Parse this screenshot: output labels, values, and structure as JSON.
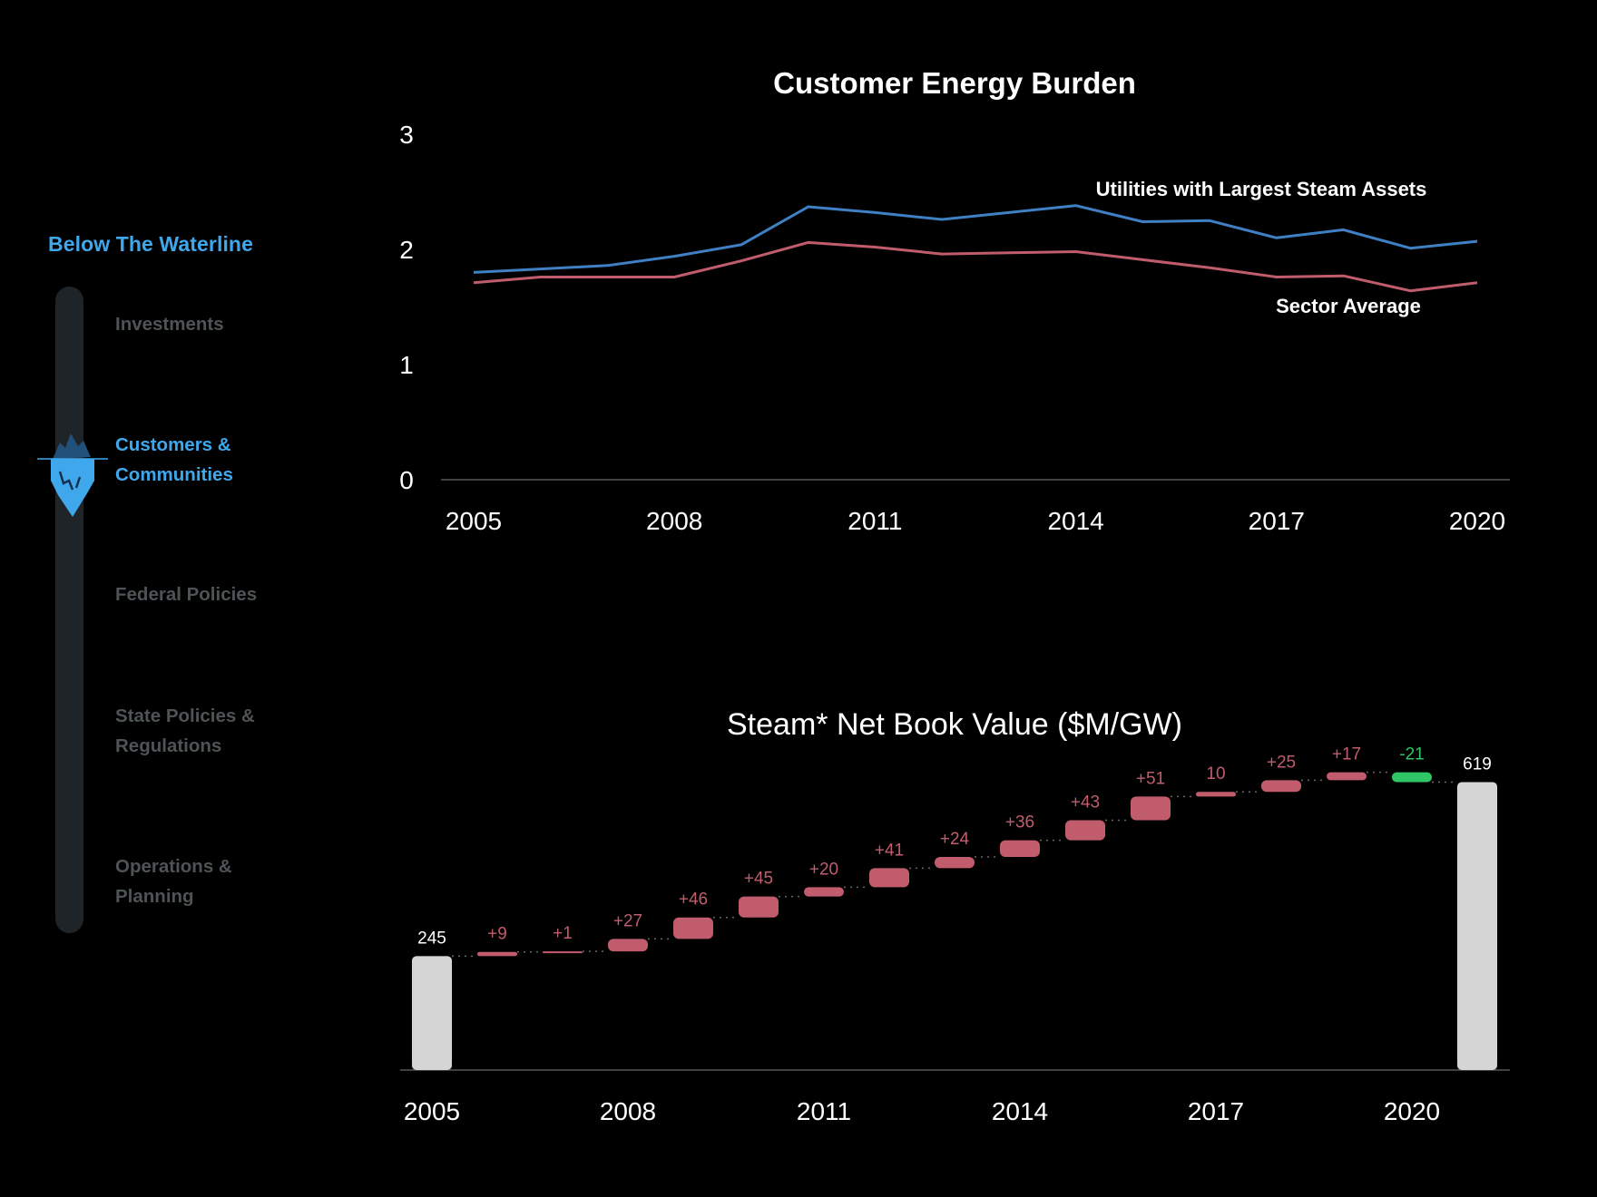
{
  "sidebar": {
    "title": "Below The Waterline",
    "items": [
      {
        "line1": "Investments",
        "line2": "",
        "active": false
      },
      {
        "line1": "Customers &",
        "line2": "Communities",
        "active": true
      },
      {
        "line1": "Federal Policies",
        "line2": "",
        "active": false
      },
      {
        "line1": "State Policies &",
        "line2": "Regulations",
        "active": false
      },
      {
        "line1": "Operations &",
        "line2": "Planning",
        "active": false
      }
    ],
    "indicator_icon": "iceberg-icon",
    "colors": {
      "active": "#3fa8ec",
      "inactive": "#4e5356",
      "track": "#1e2427"
    }
  },
  "chart_data": [
    {
      "type": "line",
      "title": "Customer Energy Burden",
      "xlabel": "",
      "ylabel": "",
      "x": [
        2005,
        2006,
        2007,
        2008,
        2009,
        2010,
        2011,
        2012,
        2013,
        2014,
        2015,
        2016,
        2017,
        2018,
        2019,
        2020
      ],
      "xticks": [
        "2005",
        "2008",
        "2011",
        "2014",
        "2017",
        "2020"
      ],
      "yticks": [
        "0",
        "1",
        "2",
        "3"
      ],
      "ylim": [
        0,
        3
      ],
      "grid": false,
      "series": [
        {
          "name": "Utilities with Largest Steam Assets",
          "color": "#3f7fc4",
          "values": [
            1.8,
            1.83,
            1.86,
            1.94,
            2.04,
            2.37,
            2.32,
            2.26,
            2.32,
            2.38,
            2.24,
            2.25,
            2.1,
            2.17,
            2.01,
            2.07
          ]
        },
        {
          "name": "Sector Average",
          "color": "#c05c6c",
          "values": [
            1.71,
            1.76,
            1.76,
            1.76,
            1.9,
            2.06,
            2.02,
            1.96,
            1.97,
            1.98,
            1.91,
            1.84,
            1.76,
            1.77,
            1.64,
            1.71
          ]
        }
      ]
    },
    {
      "type": "bar",
      "subtype": "waterfall",
      "title": "Steam* Net Book Value ($M/GW)",
      "xticks": [
        "2005",
        "2008",
        "2011",
        "2014",
        "2017",
        "2020"
      ],
      "start": {
        "label": "245",
        "value": 245
      },
      "end": {
        "label": "619",
        "value": 619
      },
      "deltas": [
        {
          "label": "+9",
          "value": 9
        },
        {
          "label": "+1",
          "value": 1
        },
        {
          "label": "+27",
          "value": 27
        },
        {
          "label": "+46",
          "value": 46
        },
        {
          "label": "+45",
          "value": 45
        },
        {
          "label": "+20",
          "value": 20
        },
        {
          "label": "+41",
          "value": 41
        },
        {
          "label": "+24",
          "value": 24
        },
        {
          "label": "+36",
          "value": 36
        },
        {
          "label": "+43",
          "value": 43
        },
        {
          "label": "+51",
          "value": 51
        },
        {
          "label": "10",
          "value": 10
        },
        {
          "label": "+25",
          "value": 25
        },
        {
          "label": "+17",
          "value": 17
        },
        {
          "label": "-21",
          "value": -21
        }
      ],
      "colors": {
        "total": "#d5d5d5",
        "increase": "#c05c6c",
        "decrease": "#2fc765",
        "connector": "#666666"
      }
    }
  ]
}
